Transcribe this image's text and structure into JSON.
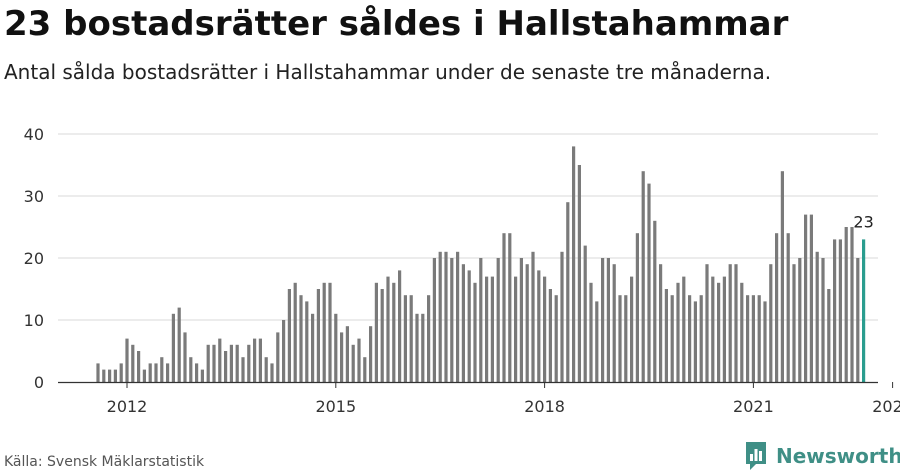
{
  "title": "23 bostadsrätter såldes i Hallstahammar",
  "subtitle": "Antal sålda bostadsrätter i Hallstahammar under de senaste tre månaderna.",
  "source": "Källa: Svensk Mäklarstatistik",
  "brand": {
    "name": "Newsworthy",
    "color": "#3f8f86"
  },
  "chart_data": {
    "type": "bar",
    "xlabel": "",
    "ylabel": "",
    "ylim": [
      0,
      40
    ],
    "yticks": [
      0,
      10,
      20,
      30,
      40
    ],
    "grid": true,
    "bar_color": "#7a7a7a",
    "highlight_color": "#2a9d8f",
    "start_month": "2011-08",
    "x_ticks": [
      {
        "label": "2012",
        "month": "2012-01"
      },
      {
        "label": "2015",
        "month": "2015-01"
      },
      {
        "label": "2018",
        "month": "2018-01"
      },
      {
        "label": "2021",
        "month": "2021-01"
      },
      {
        "label": "2023",
        "month": "2023-01"
      }
    ],
    "values": [
      3,
      2,
      2,
      2,
      3,
      7,
      6,
      5,
      2,
      3,
      3,
      4,
      3,
      11,
      12,
      8,
      4,
      3,
      2,
      6,
      6,
      7,
      5,
      6,
      6,
      4,
      6,
      7,
      7,
      4,
      3,
      8,
      10,
      15,
      16,
      14,
      13,
      11,
      15,
      16,
      16,
      11,
      8,
      9,
      6,
      7,
      4,
      9,
      16,
      15,
      17,
      16,
      18,
      14,
      14,
      11,
      11,
      14,
      20,
      21,
      21,
      20,
      21,
      19,
      18,
      16,
      20,
      17,
      17,
      20,
      24,
      24,
      17,
      20,
      19,
      21,
      18,
      17,
      15,
      14,
      21,
      29,
      38,
      35,
      22,
      16,
      13,
      20,
      20,
      19,
      14,
      14,
      17,
      24,
      34,
      32,
      26,
      19,
      15,
      14,
      16,
      17,
      14,
      13,
      14,
      19,
      17,
      16,
      17,
      19,
      19,
      16,
      14,
      14,
      14,
      13,
      19,
      24,
      34,
      24,
      19,
      20,
      27,
      27,
      21,
      20,
      15,
      23,
      23,
      25,
      25,
      20,
      23
    ],
    "highlight_last_label": "23"
  }
}
